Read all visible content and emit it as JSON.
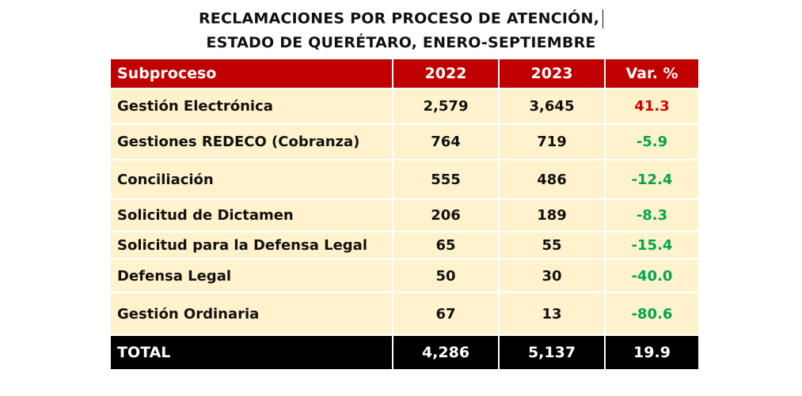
{
  "title": {
    "line1": "RECLAMACIONES POR PROCESO DE ATENCIÓN,",
    "line2": "ESTADO DE QUERÉTARO, ENERO-SEPTIEMBRE"
  },
  "colors": {
    "header": "#c00000",
    "row": "#fff2cc",
    "total": "#000000",
    "positive": "#e00000",
    "negative": "#00a550"
  },
  "table": {
    "headers": [
      "Subproceso",
      "2022",
      "2023",
      "Var. %"
    ],
    "rows": [
      {
        "name": "Gestión Electrónica",
        "y2022": "2,579",
        "y2023": "3,645",
        "var": "41.3"
      },
      {
        "name": "Gestiones REDECO (Cobranza)",
        "y2022": "764",
        "y2023": "719",
        "var": "-5.9"
      },
      {
        "name": "Conciliación",
        "y2022": "555",
        "y2023": "486",
        "var": "-12.4"
      },
      {
        "name": "Solicitud de Dictamen",
        "y2022": "206",
        "y2023": "189",
        "var": "-8.3"
      },
      {
        "name": "Solicitud para la Defensa Legal",
        "y2022": "65",
        "y2023": "55",
        "var": "-15.4"
      },
      {
        "name": "Defensa Legal",
        "y2022": "50",
        "y2023": "30",
        "var": "-40.0"
      },
      {
        "name": "Gestión Ordinaria",
        "y2022": "67",
        "y2023": "13",
        "var": "-80.6"
      }
    ],
    "total": {
      "name": "TOTAL",
      "y2022": "4,286",
      "y2023": "5,137",
      "var": "19.9"
    }
  }
}
